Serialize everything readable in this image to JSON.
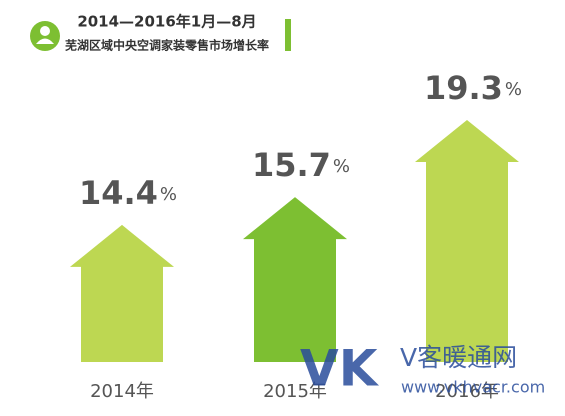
{
  "chart_data": {
    "type": "arrow-bar",
    "title": "2014—2016年1月—8月",
    "subtitle": "芜湖区域中央空调家装零售市场增长率",
    "categories": [
      "2014年",
      "2015年",
      "2016年"
    ],
    "values": [
      14.4,
      15.7,
      19.3
    ],
    "unit": "%",
    "colors": [
      "#bdd752",
      "#7dbf32",
      "#bdd752"
    ],
    "ylim": [
      8,
      20
    ]
  },
  "watermark": {
    "logo": "VK",
    "name": "V客暖通网",
    "url": "www.vkhvacr.com"
  }
}
